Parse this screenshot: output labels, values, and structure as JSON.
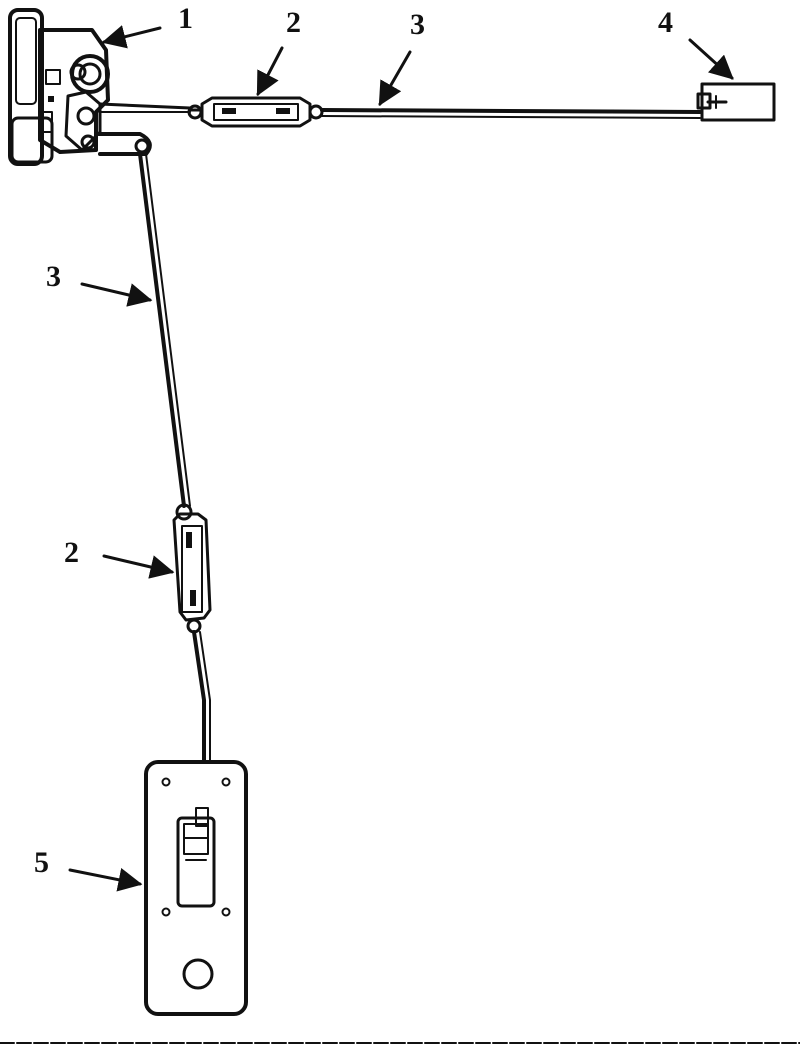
{
  "callouts": [
    {
      "id": "lock",
      "text": "1"
    },
    {
      "id": "adjuster-top",
      "text": "2"
    },
    {
      "id": "rod-top",
      "text": "3"
    },
    {
      "id": "actuator",
      "text": "4"
    },
    {
      "id": "rod-vertical",
      "text": "3"
    },
    {
      "id": "adjuster-vertical",
      "text": "2"
    },
    {
      "id": "handle",
      "text": "5"
    }
  ],
  "colors": {
    "ink": "#111111",
    "paper": "#ffffff"
  }
}
